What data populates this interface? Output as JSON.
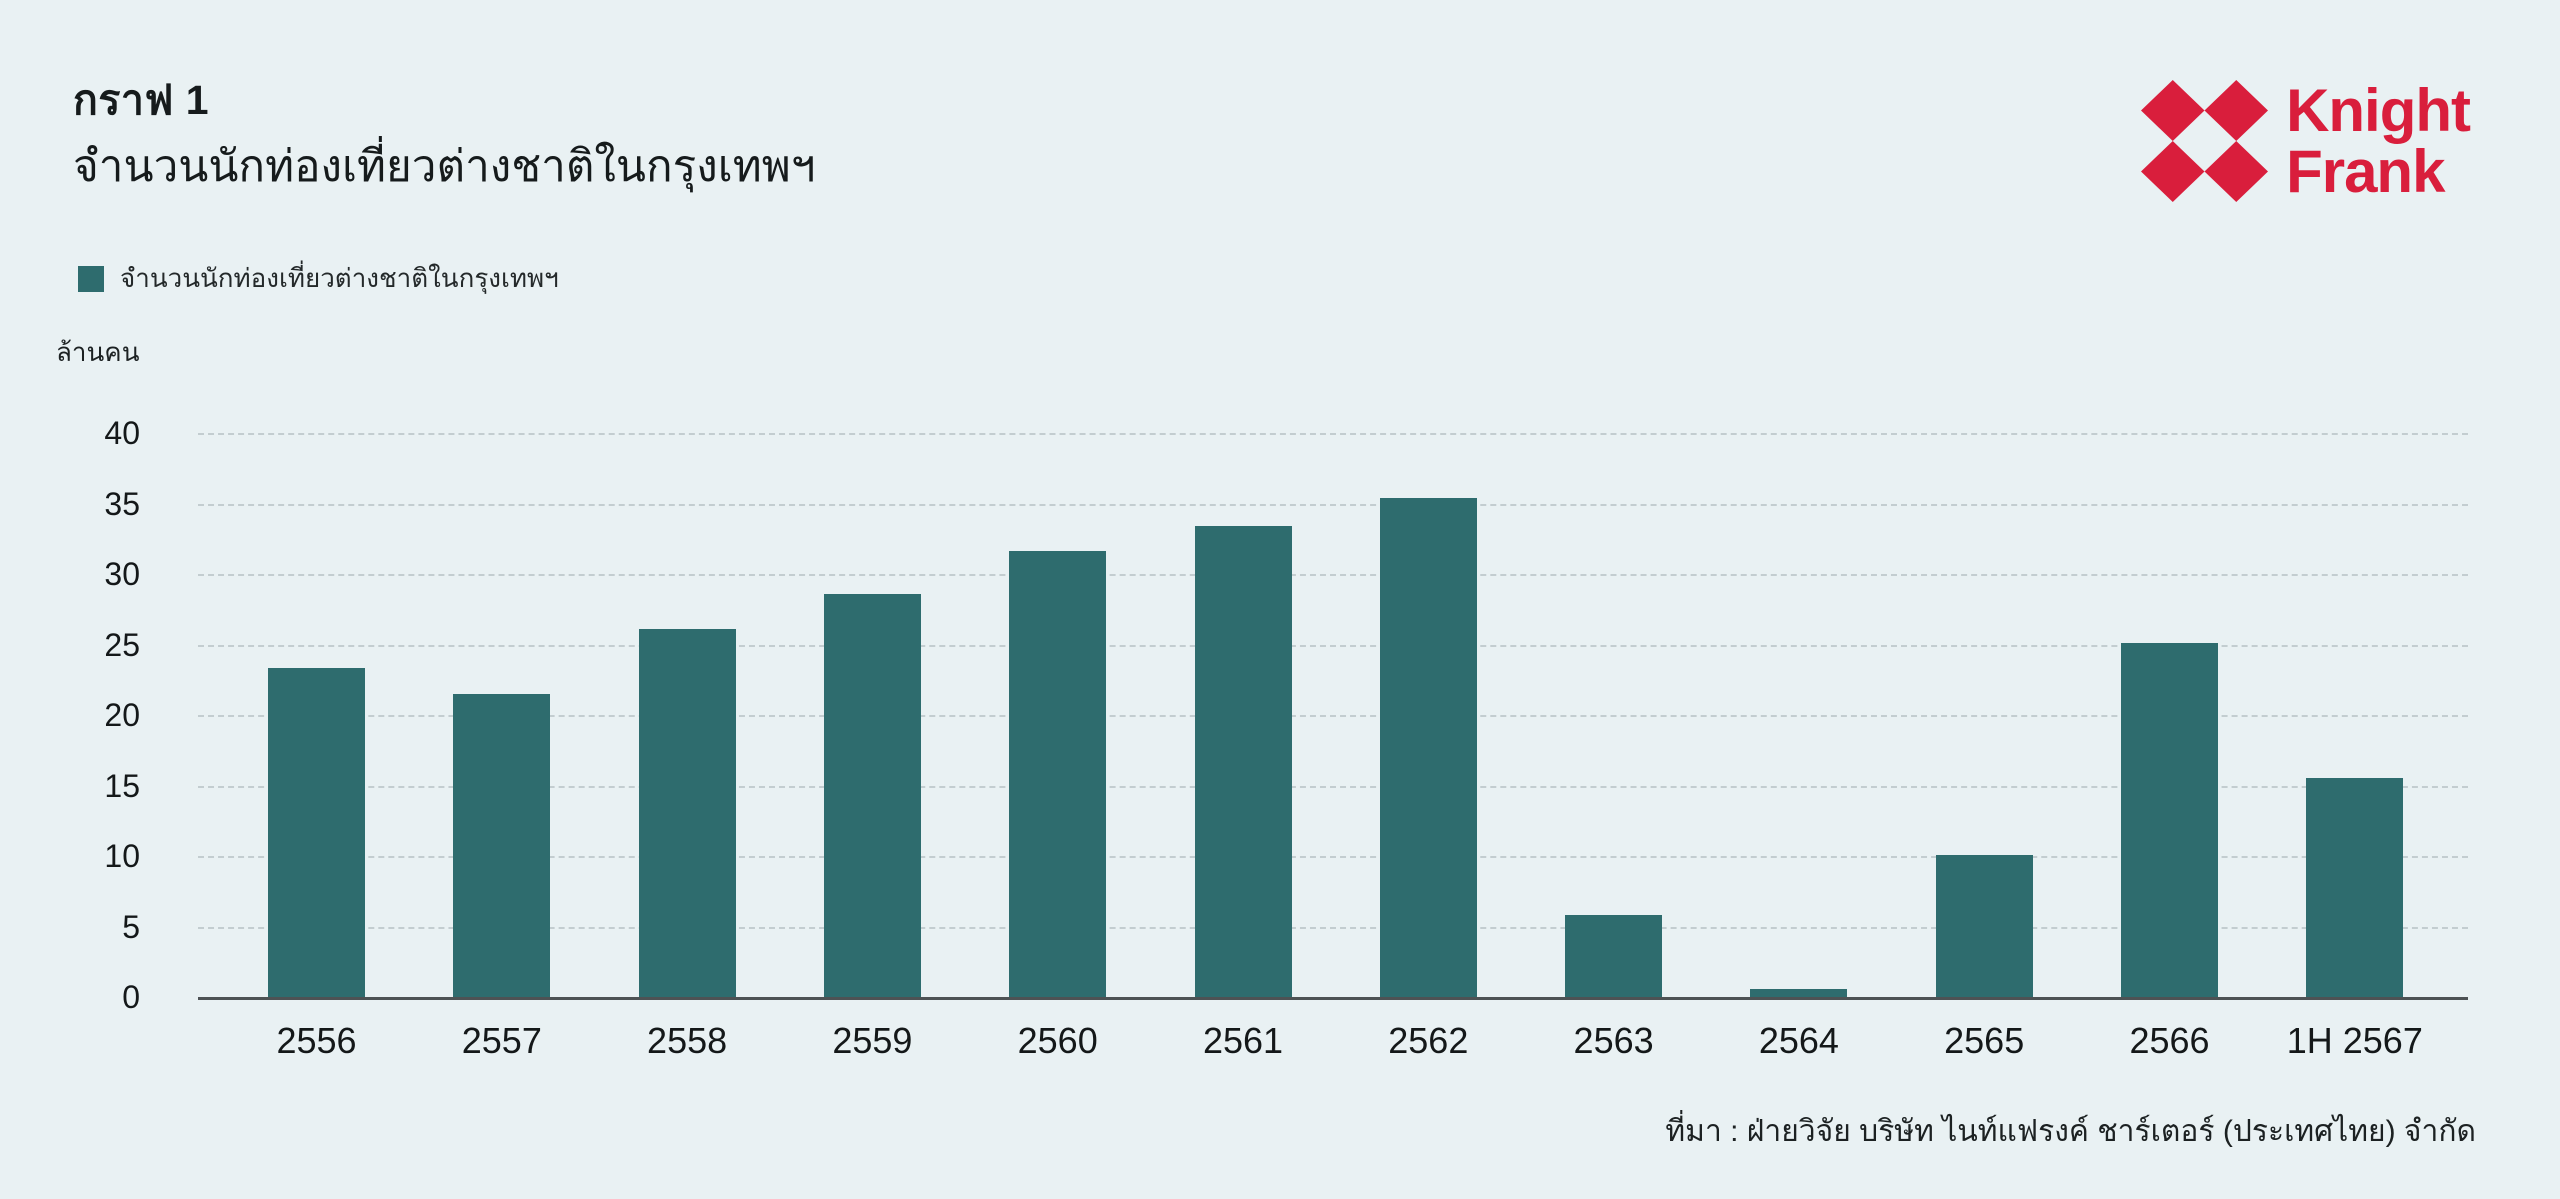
{
  "page": {
    "background_color": "#e9f1f3"
  },
  "header": {
    "title": "กราฟ 1",
    "subtitle": "จำนวนนักท่องเที่ยวต่างชาติในกรุงเทพฯ"
  },
  "logo": {
    "brand_line1": "Knight",
    "brand_line2": "Frank",
    "brand_color": "#d91e3c",
    "mark_icon": "four-red-diamonds-mark"
  },
  "legend": {
    "swatch_color": "#2e6c6e",
    "label": "จำนวนนักท่องเที่ยวต่างชาติในกรุงเทพฯ"
  },
  "chart_data": {
    "type": "bar",
    "title": "จำนวนนักท่องเที่ยวต่างชาติในกรุงเทพฯ",
    "series_name": "จำนวนนักท่องเที่ยวต่างชาติในกรุงเทพฯ",
    "unit_label": "ล้านคน",
    "categories": [
      "2556",
      "2557",
      "2558",
      "2559",
      "2560",
      "2561",
      "2562",
      "2563",
      "2564",
      "2565",
      "2566",
      "1H 2567"
    ],
    "values": [
      23.3,
      21.5,
      26.1,
      28.6,
      31.6,
      33.4,
      35.4,
      5.8,
      0.6,
      10.1,
      25.1,
      15.5
    ],
    "xlabel": "",
    "ylabel": "ล้านคน",
    "ylim": [
      0,
      40
    ],
    "yticks": [
      0,
      5,
      10,
      15,
      20,
      25,
      30,
      35,
      40
    ],
    "grid": "horizontal-dashed",
    "legend_position": "top-left",
    "bar_color": "#2e6c6e"
  },
  "source": {
    "text": "ที่มา : ฝ่ายวิจัย บริษัท ไนท์แฟรงค์ ชาร์เตอร์ (ประเทศไทย) จำกัด"
  }
}
